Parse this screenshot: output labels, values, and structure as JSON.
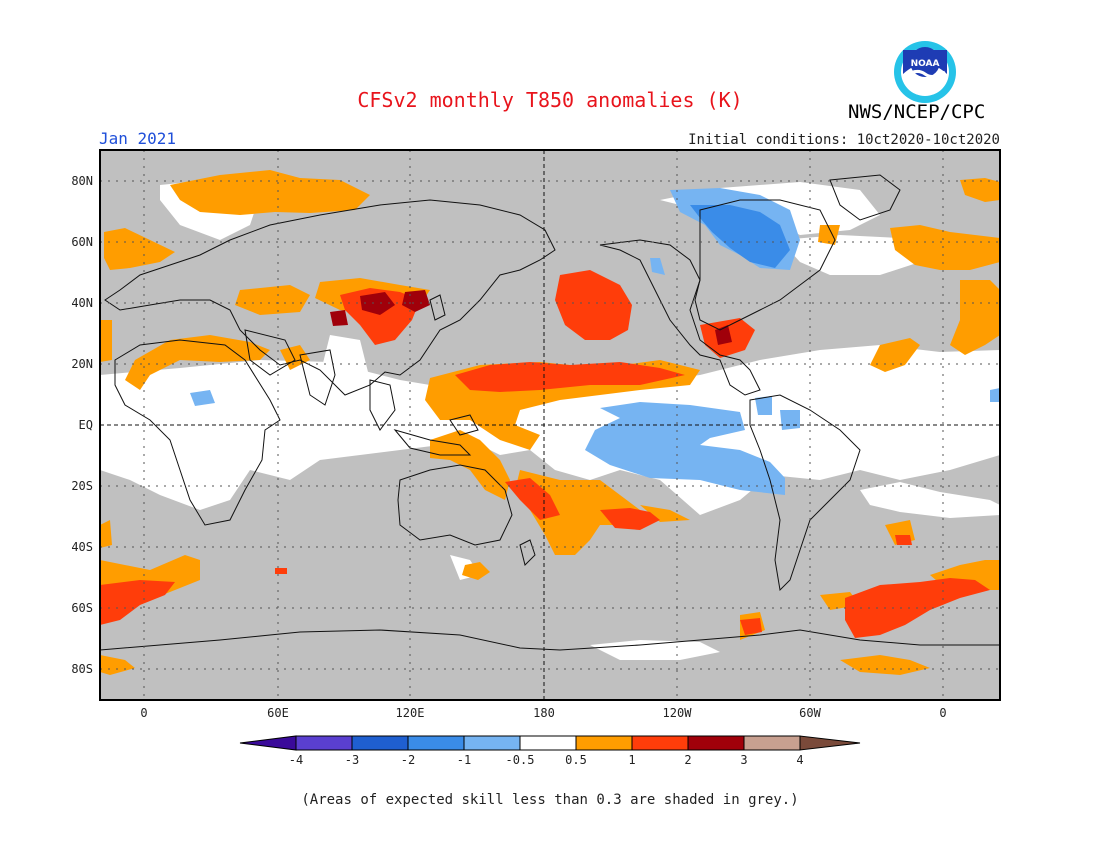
{
  "header": {
    "title": "CFSv2 monthly T850 anomalies (K)",
    "period": "Jan 2021",
    "initial_conditions": "Initial conditions: 10ct2020-10ct2020",
    "organization": "NWS/NCEP/CPC",
    "logo_text": "NOAA"
  },
  "axes": {
    "lat_labels": [
      "80N",
      "60N",
      "40N",
      "20N",
      "EQ",
      "20S",
      "40S",
      "60S",
      "80S"
    ],
    "lon_labels": [
      "0",
      "60E",
      "120E",
      "180",
      "120W",
      "60W",
      "0"
    ]
  },
  "colorbar": {
    "tick_labels": [
      "-4",
      "-3",
      "-2",
      "-1",
      "-0.5",
      "0.5",
      "1",
      "2",
      "3",
      "4"
    ],
    "colors": [
      "#3a0a9a",
      "#5a3fd0",
      "#1f5fd0",
      "#3a8ce8",
      "#76b4f2",
      "#ffffff",
      "#ff9d00",
      "#ff3d0a",
      "#a0000a",
      "#c8a090",
      "#7a4a3a"
    ]
  },
  "footnote": "(Areas of expected skill less than 0.3 are shaded in grey.)",
  "colors": {
    "skill_grey": "#c0c0c0",
    "warm_1": "#ff9d00",
    "warm_2": "#ff3d0a",
    "warm_3": "#a0000a",
    "cool_1": "#76b4f2",
    "cool_2": "#3a8ce8"
  }
}
